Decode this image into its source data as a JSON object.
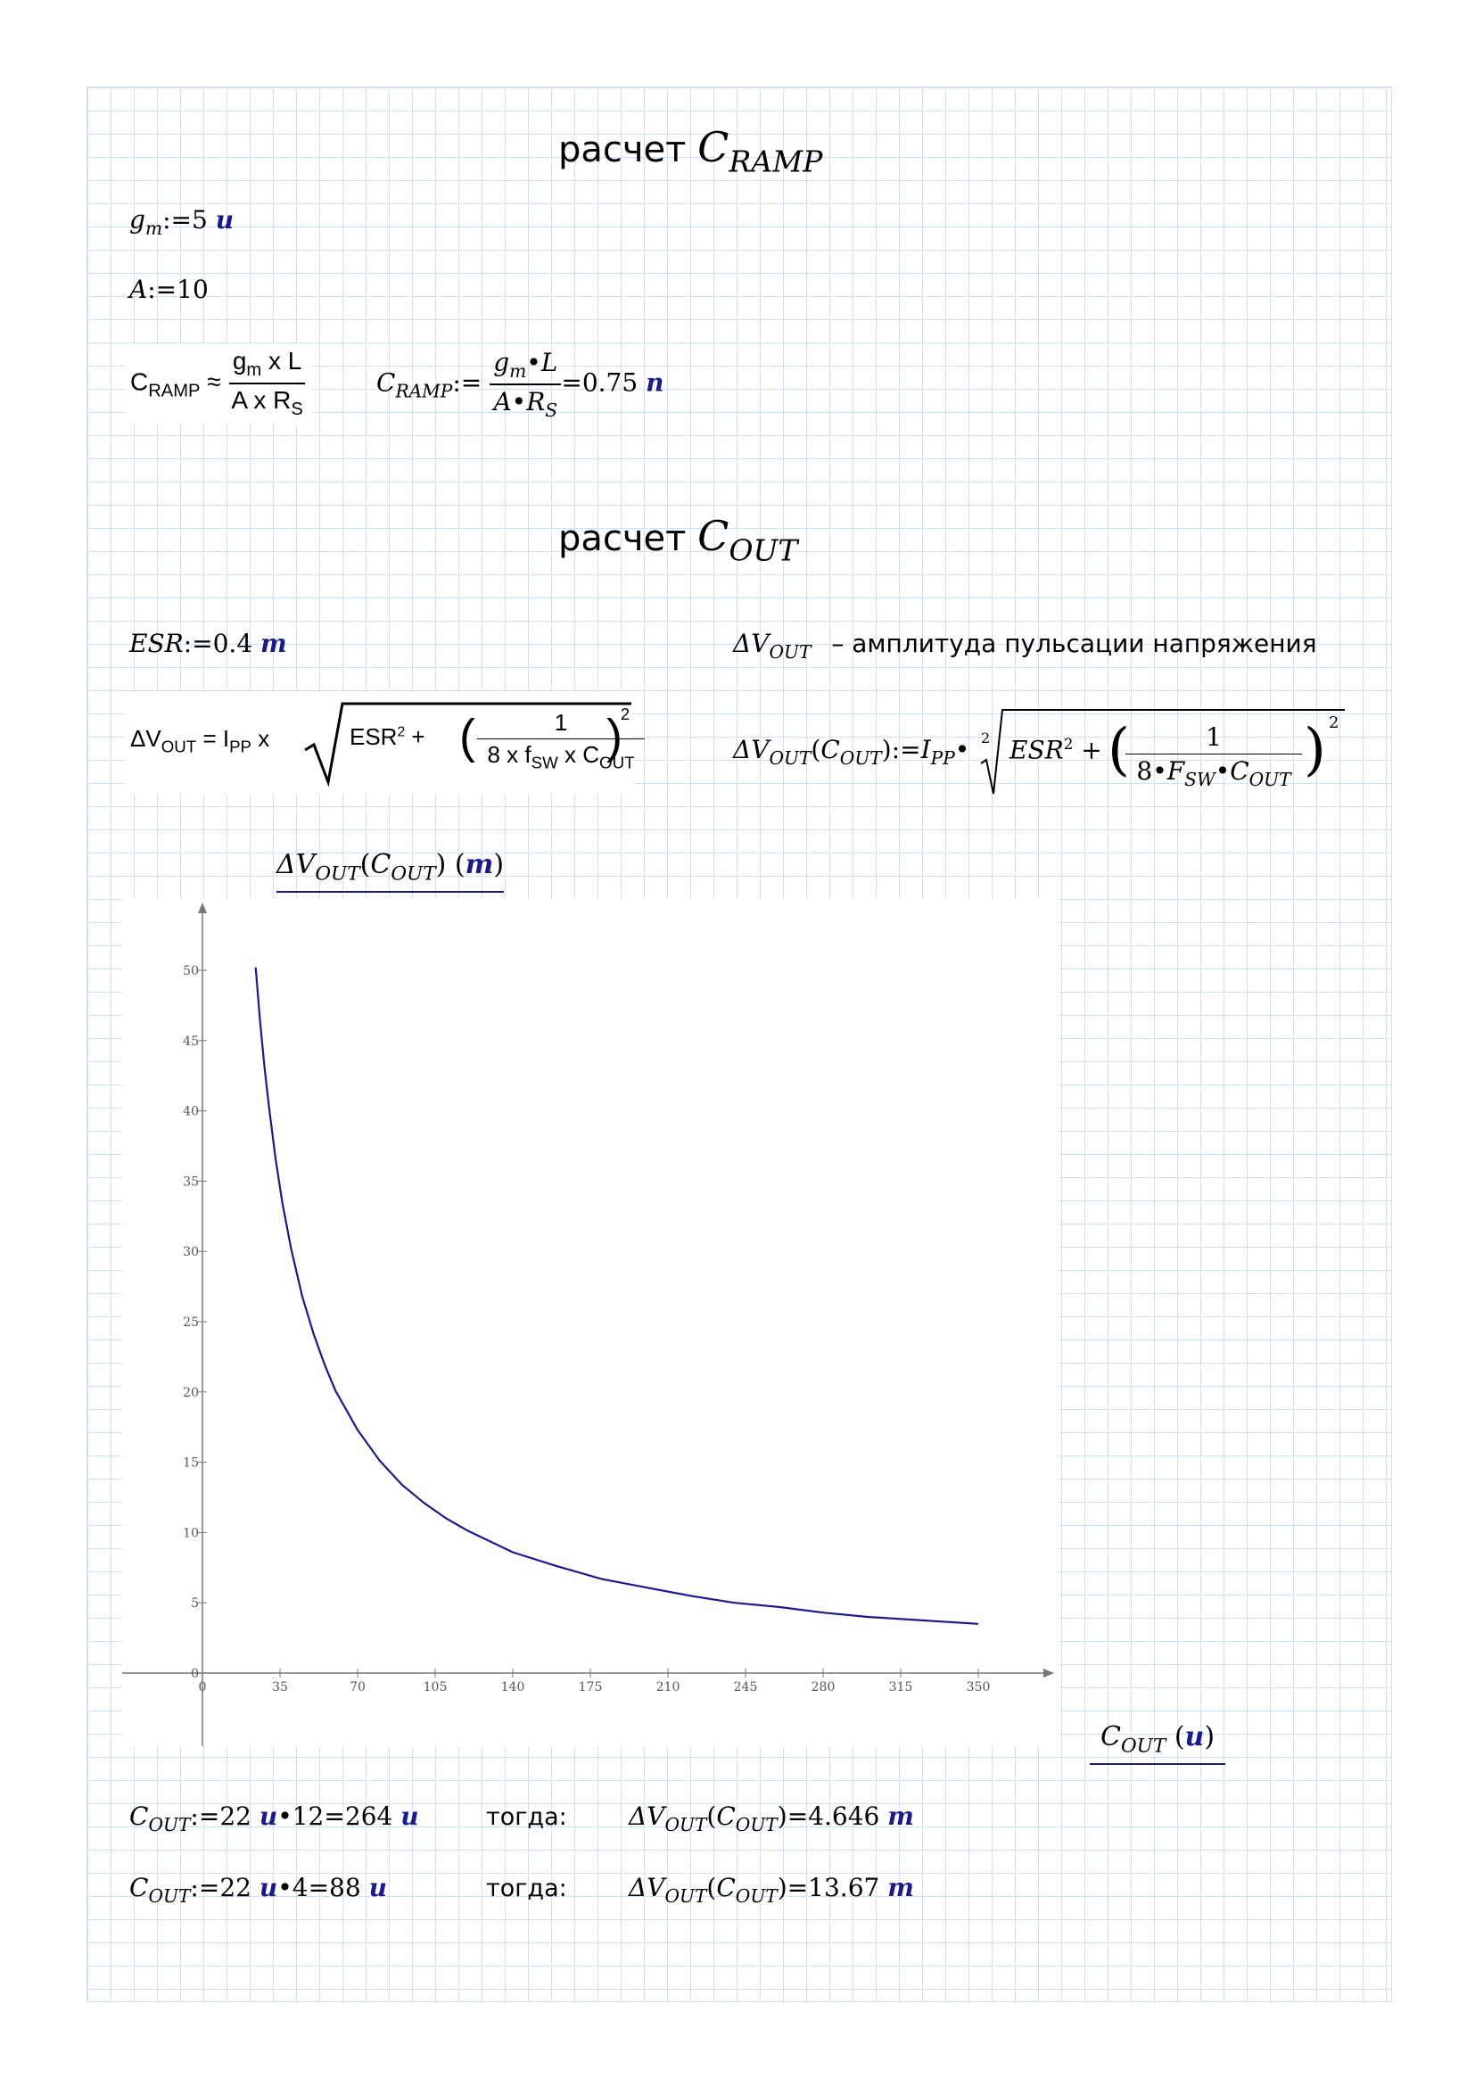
{
  "section1": {
    "title_text": "расчет",
    "title_var": "C",
    "title_sub": "RAMP"
  },
  "gm": {
    "var": "g",
    "sub": "m",
    "assign": ":=",
    "value": "5",
    "unit": "u"
  },
  "A": {
    "var": "A",
    "assign": ":=",
    "value": "10"
  },
  "cramp_image": {
    "lhs": "C",
    "lhs_sub": "RAMP",
    "approx": "≈",
    "num": "g",
    "num_sub": "m",
    "num_rest": " x L",
    "den": "A x R",
    "den_sub": "S"
  },
  "cramp_calc": {
    "lhs": "C",
    "lhs_sub": "RAMP",
    "assign": ":=",
    "num_var": "g",
    "num_sub": "m",
    "num_dot": "•",
    "num_L": "L",
    "den_A": "A",
    "den_dot": "•",
    "den_R": "R",
    "den_sub": "S",
    "equals": "=",
    "result": "0.75",
    "unit": "n"
  },
  "section2": {
    "title_text": "расчет",
    "title_var": "C",
    "title_sub": "OUT"
  },
  "esr": {
    "var": "ESR",
    "assign": ":=",
    "value": "0.4",
    "unit": "m"
  },
  "dvout_desc": {
    "var": "ΔV",
    "sub": "OUT",
    "text": "– амплитуда пульсации напряжения"
  },
  "dvout_image": {
    "lhs": "ΔV",
    "lhs_sub": "OUT",
    "eq": "= I",
    "ipp_sub": "PP",
    "x": "x",
    "esr": "ESR",
    "sq": "2",
    "plus": "+",
    "one": "1",
    "den": "8 x f",
    "den_sub": "SW",
    "den_rest": " x C",
    "den_sub2": "OUT",
    "outer_sq": "2"
  },
  "dvout_def": {
    "lhs": "ΔV",
    "lhs_sub": "OUT",
    "arg": "C",
    "arg_sub": "OUT",
    "assign": ":=",
    "ipp": "I",
    "ipp_sub": "PP",
    "dot": "•",
    "root_index": "2",
    "esr": "ESR",
    "sq": "2",
    "plus": "+",
    "one": "1",
    "den_8": "8",
    "den_F": "F",
    "den_F_sub": "SW",
    "den_C": "C",
    "den_C_sub": "OUT",
    "outer_sq": "2"
  },
  "plot_ylabel": {
    "var": "ΔV",
    "sub": "OUT",
    "arg": "C",
    "arg_sub": "OUT",
    "unit": "m"
  },
  "plot_xlabel": {
    "var": "C",
    "sub": "OUT",
    "unit": "u"
  },
  "chart_data": {
    "type": "line",
    "xlim": [
      0,
      350
    ],
    "ylim": [
      0,
      50
    ],
    "x_ticks": [
      "0",
      "35",
      "70",
      "105",
      "140",
      "175",
      "210",
      "245",
      "280",
      "315",
      "350"
    ],
    "y_ticks": [
      "0",
      "5",
      "10",
      "15",
      "20",
      "25",
      "30",
      "35",
      "40",
      "45",
      "50"
    ],
    "series": [
      {
        "color": "#1a1a8a",
        "x": [
          24,
          26,
          28,
          30,
          33,
          36,
          40,
          45,
          50,
          55,
          60,
          70,
          80,
          90,
          100,
          110,
          120,
          140,
          160,
          180,
          200,
          220,
          240,
          260,
          280,
          300,
          320,
          350
        ],
        "y": [
          50.2,
          46.4,
          43.1,
          40.3,
          36.6,
          33.5,
          30.2,
          26.8,
          24.2,
          22.0,
          20.1,
          17.3,
          15.1,
          13.4,
          12.1,
          11.0,
          10.1,
          8.6,
          7.6,
          6.7,
          6.1,
          5.5,
          5.0,
          4.7,
          4.3,
          4.0,
          3.8,
          3.5
        ]
      }
    ],
    "grid": false
  },
  "calc1": {
    "lhs": "C",
    "lhs_sub": "OUT",
    "assign": ":=",
    "base": "22",
    "base_unit": "u",
    "dot": "•",
    "mult": "12",
    "equals": "=",
    "result": "264",
    "unit": "u",
    "then": "тогда:",
    "res_var": "ΔV",
    "res_sub": "OUT",
    "res_arg": "C",
    "res_arg_sub": "OUT",
    "res_eq": "=",
    "res_val": "4.646",
    "res_unit": "m"
  },
  "calc2": {
    "lhs": "C",
    "lhs_sub": "OUT",
    "assign": ":=",
    "base": "22",
    "base_unit": "u",
    "dot": "•",
    "mult": "4",
    "equals": "=",
    "result": "88",
    "unit": "u",
    "then": "тогда:",
    "res_var": "ΔV",
    "res_sub": "OUT",
    "res_arg": "C",
    "res_arg_sub": "OUT",
    "res_eq": "=",
    "res_val": "13.67",
    "res_unit": "m"
  }
}
